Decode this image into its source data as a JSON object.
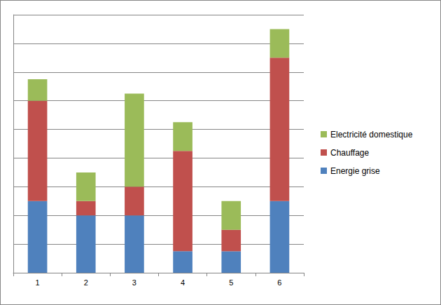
{
  "chart_data": {
    "type": "bar",
    "stacked": true,
    "grid": true,
    "legend": "right",
    "tick_labels": "x",
    "categories": [
      "1",
      "2",
      "3",
      "4",
      "5",
      "6"
    ],
    "ylim": [
      0,
      9
    ],
    "yticks": [
      0,
      1,
      2,
      3,
      4,
      5,
      6,
      7,
      8,
      9
    ],
    "series": [
      {
        "name": "Energie grise",
        "color": "#4f81bd",
        "values": [
          2.5,
          2,
          2,
          0.75,
          0.75,
          2.5
        ]
      },
      {
        "name": "Chauffage",
        "color": "#c0504d",
        "values": [
          3.5,
          0.5,
          1,
          3.5,
          0.75,
          5
        ]
      },
      {
        "name": "Electricité domestique",
        "color": "#9bbb59",
        "values": [
          0.75,
          1,
          3.25,
          1,
          1,
          1
        ]
      }
    ]
  }
}
